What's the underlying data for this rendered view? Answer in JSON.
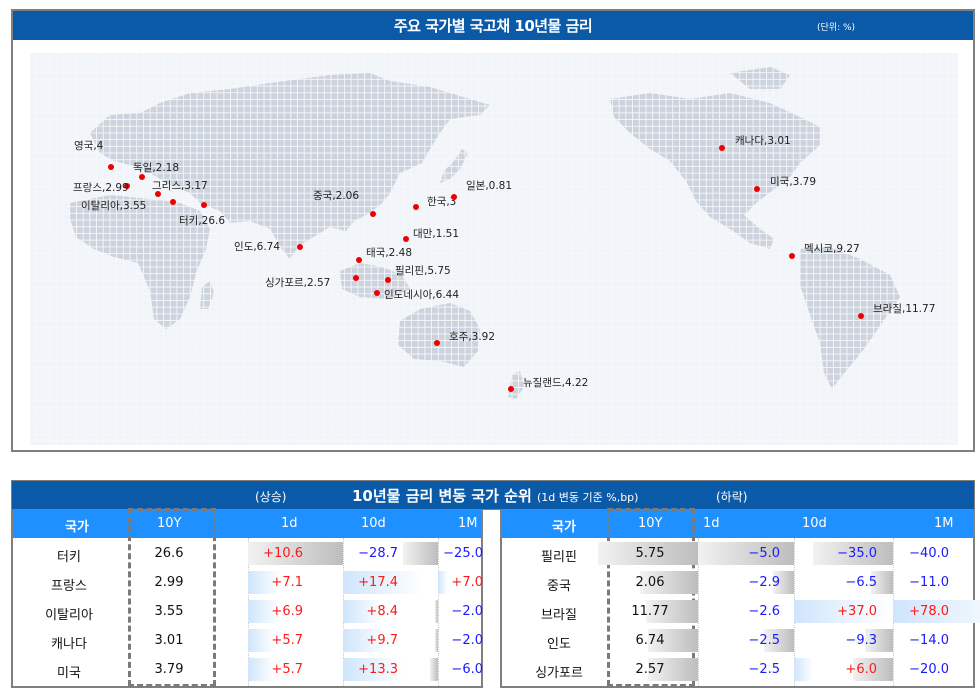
{
  "map": {
    "title": "주요 국가별 국고채 10년물 금리",
    "unit": "(단위: %)",
    "markers": [
      {
        "label": "영국,4",
        "dot": [
          81,
          114
        ],
        "text": [
          44,
          87
        ]
      },
      {
        "label": "독일,2.18",
        "dot": [
          112,
          124
        ],
        "text": [
          103,
          109
        ]
      },
      {
        "label": "프랑스,2.99",
        "dot": [
          97,
          133
        ],
        "text": [
          43,
          129
        ]
      },
      {
        "label": "그리스,3.17",
        "dot": [
          128,
          141
        ],
        "text": [
          122,
          127
        ]
      },
      {
        "label": "이탈리아,3.55",
        "dot": [
          143,
          149
        ],
        "text": [
          51,
          147
        ]
      },
      {
        "label": "터키,26.6",
        "dot": [
          174,
          152
        ],
        "text": [
          149,
          162
        ]
      },
      {
        "label": "인도,6.74",
        "dot": [
          270,
          194
        ],
        "text": [
          204,
          188
        ]
      },
      {
        "label": "중국,2.06",
        "dot": [
          343,
          161
        ],
        "text": [
          283,
          137
        ]
      },
      {
        "label": "한국,3",
        "dot": [
          386,
          154
        ],
        "text": [
          397,
          143
        ]
      },
      {
        "label": "일본,0.81",
        "dot": [
          424,
          144
        ],
        "text": [
          436,
          127
        ]
      },
      {
        "label": "대만,1.51",
        "dot": [
          376,
          186
        ],
        "text": [
          383,
          175
        ]
      },
      {
        "label": "태국,2.48",
        "dot": [
          329,
          207
        ],
        "text": [
          336,
          194
        ]
      },
      {
        "label": "필리핀,5.75",
        "dot": [
          358,
          227
        ],
        "text": [
          365,
          212
        ]
      },
      {
        "label": "싱가포르,2.57",
        "dot": [
          326,
          225
        ],
        "text": [
          235,
          224
        ]
      },
      {
        "label": "인도네시아,6.44",
        "dot": [
          347,
          240
        ],
        "text": [
          354,
          236
        ]
      },
      {
        "label": "호주,3.92",
        "dot": [
          407,
          290
        ],
        "text": [
          419,
          278
        ]
      },
      {
        "label": "뉴질랜드,4.22",
        "dot": [
          481,
          336
        ],
        "text": [
          493,
          324
        ]
      },
      {
        "label": "캐나다,3.01",
        "dot": [
          692,
          95
        ],
        "text": [
          705,
          82
        ]
      },
      {
        "label": "미국,3.79",
        "dot": [
          727,
          136
        ],
        "text": [
          740,
          123
        ]
      },
      {
        "label": "멕시코,9.27",
        "dot": [
          762,
          203
        ],
        "text": [
          774,
          190
        ]
      },
      {
        "label": "브라질,11.77",
        "dot": [
          831,
          263
        ],
        "text": [
          843,
          250
        ]
      }
    ]
  },
  "ranking": {
    "up_label": "(상승)",
    "title": "10년물 금리 변동 국가 순위",
    "subtitle": "(1d 변동 기준 %,bp)",
    "down_label": "(하락)",
    "columns": {
      "country": "국가",
      "y10": "10Y",
      "d1": "1d",
      "d10": "10d",
      "m1": "1M"
    },
    "rising": [
      {
        "country": "터키",
        "y10": "26.6",
        "d1": "+10.6",
        "d10": "-28.7",
        "m1": "-25.0"
      },
      {
        "country": "프랑스",
        "y10": "2.99",
        "d1": "+7.1",
        "d10": "+17.4",
        "m1": "+7.0"
      },
      {
        "country": "이탈리아",
        "y10": "3.55",
        "d1": "+6.9",
        "d10": "+8.4",
        "m1": "-2.0"
      },
      {
        "country": "캐나다",
        "y10": "3.01",
        "d1": "+5.7",
        "d10": "+9.7",
        "m1": "-2.0"
      },
      {
        "country": "미국",
        "y10": "3.79",
        "d1": "+5.7",
        "d10": "+13.3",
        "m1": "-6.0"
      }
    ],
    "falling": [
      {
        "country": "필리핀",
        "y10": "5.75",
        "d1": "-5.0",
        "d10": "-35.0",
        "m1": "-40.0"
      },
      {
        "country": "중국",
        "y10": "2.06",
        "d1": "-2.9",
        "d10": "-6.5",
        "m1": "-11.0"
      },
      {
        "country": "브라질",
        "y10": "11.77",
        "d1": "-2.6",
        "d10": "+37.0",
        "m1": "+78.0"
      },
      {
        "country": "인도",
        "y10": "6.74",
        "d1": "-2.5",
        "d10": "-9.3",
        "m1": "-14.0"
      },
      {
        "country": "싱가포르",
        "y10": "2.57",
        "d1": "-2.5",
        "d10": "+6.0",
        "m1": "-20.0"
      }
    ]
  },
  "colors": {
    "header_blue": "#0a5aa8",
    "column_header_blue": "#1e90ff",
    "positive_red": "#ff1a1a",
    "negative_blue": "#1a1aff",
    "marker_red": "#ee0000",
    "land_gray": "#ccd3dd"
  },
  "chart_data": {
    "type": "table",
    "title": "주요 국가별 국고채 10년물 금리",
    "unit": "%",
    "map_values": [
      {
        "country": "영국",
        "value": 4
      },
      {
        "country": "독일",
        "value": 2.18
      },
      {
        "country": "프랑스",
        "value": 2.99
      },
      {
        "country": "그리스",
        "value": 3.17
      },
      {
        "country": "이탈리아",
        "value": 3.55
      },
      {
        "country": "터키",
        "value": 26.6
      },
      {
        "country": "인도",
        "value": 6.74
      },
      {
        "country": "중국",
        "value": 2.06
      },
      {
        "country": "한국",
        "value": 3
      },
      {
        "country": "일본",
        "value": 0.81
      },
      {
        "country": "대만",
        "value": 1.51
      },
      {
        "country": "태국",
        "value": 2.48
      },
      {
        "country": "필리핀",
        "value": 5.75
      },
      {
        "country": "싱가포르",
        "value": 2.57
      },
      {
        "country": "인도네시아",
        "value": 6.44
      },
      {
        "country": "호주",
        "value": 3.92
      },
      {
        "country": "뉴질랜드",
        "value": 4.22
      },
      {
        "country": "캐나다",
        "value": 3.01
      },
      {
        "country": "미국",
        "value": 3.79
      },
      {
        "country": "멕시코",
        "value": 9.27
      },
      {
        "country": "브라질",
        "value": 11.77
      }
    ],
    "ranking_title": "10년물 금리 변동 국가 순위 (1d 변동 기준 %,bp)",
    "ranking_columns": [
      "국가",
      "10Y",
      "1d",
      "10d",
      "1M"
    ],
    "rising": [
      [
        "터키",
        26.6,
        10.6,
        -28.7,
        -25.0
      ],
      [
        "프랑스",
        2.99,
        7.1,
        17.4,
        7.0
      ],
      [
        "이탈리아",
        3.55,
        6.9,
        8.4,
        -2.0
      ],
      [
        "캐나다",
        3.01,
        5.7,
        9.7,
        -2.0
      ],
      [
        "미국",
        3.79,
        5.7,
        13.3,
        -6.0
      ]
    ],
    "falling": [
      [
        "필리핀",
        5.75,
        -5.0,
        -35.0,
        -40.0
      ],
      [
        "중국",
        2.06,
        -2.9,
        -6.5,
        -11.0
      ],
      [
        "브라질",
        11.77,
        -2.6,
        37.0,
        78.0
      ],
      [
        "인도",
        6.74,
        -2.5,
        -9.3,
        -14.0
      ],
      [
        "싱가포르",
        2.57,
        -2.5,
        6.0,
        -20.0
      ]
    ]
  }
}
